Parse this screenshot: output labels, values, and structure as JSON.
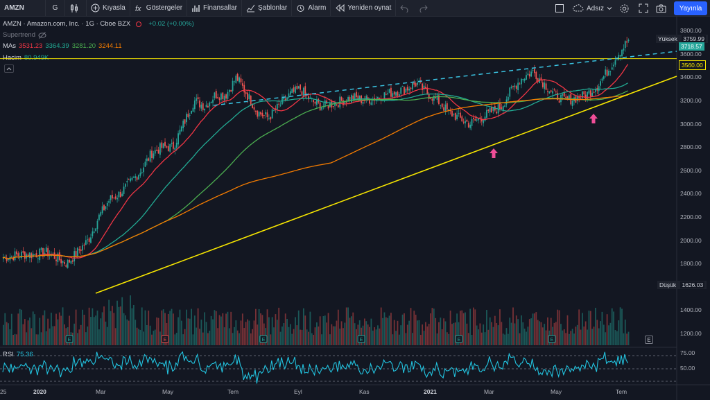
{
  "toolbar": {
    "symbol": "AMZN",
    "interval": "G",
    "compare": "Kıyasla",
    "indicators": "Göstergeler",
    "financials": "Finansallar",
    "templates": "Şablonlar",
    "alarm": "Alarm",
    "replay": "Yeniden oynat",
    "layout_name": "Adsız",
    "publish": "Yayınla"
  },
  "legend": {
    "title": "AMZN · Amazon.com, Inc. · 1G · Cboe BZX",
    "change": "+0.02 (+0.00%)",
    "supertrend": "Supertrend",
    "mas_label": "MAs",
    "mas_values": [
      "3531.23",
      "3364.39",
      "3281.20",
      "3244.11"
    ],
    "volume_label": "Hacim",
    "volume_value": "80.949K"
  },
  "price_axis": {
    "ticks": [
      "3800.00",
      "3600.00",
      "3400.00",
      "3200.00",
      "3000.00",
      "2800.00",
      "2600.00",
      "2400.00",
      "2200.00",
      "2000.00",
      "1800.00",
      "1600.00",
      "1400.00",
      "1200.00"
    ],
    "high_label": "Yüksek",
    "high_value": "3759.99",
    "last_value": "3718.57",
    "line_value": "3560.00",
    "low_label": "Düşük",
    "low_value": "1626.03"
  },
  "rsi": {
    "label": "RSI",
    "value": "75.36",
    "ticks": [
      "75.00",
      "50.00"
    ]
  },
  "time_axis": [
    "2020",
    "Mar",
    "May",
    "Tem",
    "Eyl",
    "Kas",
    "2021",
    "Mar",
    "May",
    "Tem"
  ],
  "chart_data": {
    "type": "line",
    "series": [
      {
        "values": [
          1850,
          1870,
          1880,
          1880,
          1900,
          1850,
          1800,
          1900,
          2000,
          2200,
          2350,
          2400,
          2500,
          2600,
          2750,
          2800,
          2800,
          3000,
          3200,
          3150,
          3250,
          3250,
          3400,
          3250,
          3100,
          3050,
          3150,
          3250,
          3300,
          3200,
          3150,
          3170,
          3200,
          3230,
          3200,
          3220,
          3250,
          3280,
          3300,
          3350,
          3260,
          3200,
          3100,
          3050,
          3000,
          3050,
          3100,
          3150,
          3300,
          3400,
          3450,
          3350,
          3250,
          3200,
          3220,
          3250,
          3320,
          3450,
          3600,
          3720
        ]
      }
    ],
    "ylim": [
      1150,
      3850
    ],
    "lines": {
      "horizontal": 3560
    },
    "colors": {
      "up": "#26a69a",
      "down": "#ef5350",
      "ma1": "#f23645",
      "ma2": "#22ab94",
      "ma3": "#4caf50",
      "ma4": "#f57c00",
      "trend": "#f7e600",
      "dashed": "#3ac2e0",
      "rsi": "#22c4e0",
      "arrow": "#f04e98"
    },
    "earnings_marker": "E"
  }
}
